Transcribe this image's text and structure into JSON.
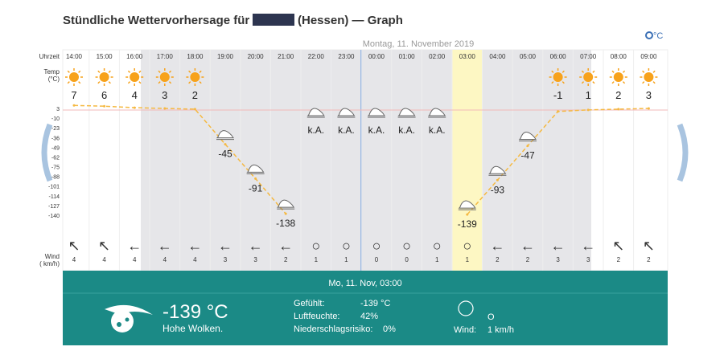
{
  "chart_data": {
    "type": "line",
    "title": "Stündliche Wettervorhersage für",
    "title_suffix": "(Hessen) — Graph",
    "date_label": "Montag, 11. November 2019",
    "unit_toggle": "°C",
    "row_labels": {
      "time": "Uhrzeit",
      "temp": "Temp",
      "temp_unit": "(°C)",
      "wind": "Wind",
      "wind_unit": "( km/h)"
    },
    "categories": [
      "14:00",
      "15:00",
      "16:00",
      "17:00",
      "18:00",
      "19:00",
      "20:00",
      "21:00",
      "22:00",
      "23:00",
      "00:00",
      "01:00",
      "02:00",
      "03:00",
      "04:00",
      "05:00",
      "06:00",
      "07:00",
      "08:00",
      "09:00"
    ],
    "series": [
      {
        "name": "Temp",
        "color": "#f5b942",
        "values": [
          7,
          6,
          4,
          3,
          2,
          -45,
          -91,
          -138,
          null,
          null,
          null,
          null,
          null,
          -139,
          -93,
          -47,
          -1,
          1,
          2,
          3
        ],
        "value_labels": [
          "7",
          "6",
          "4",
          "3",
          "2",
          "-45",
          "-91",
          "-138",
          "k.A.",
          "k.A.",
          "k.A.",
          "k.A.",
          "k.A.",
          "-139",
          "-93",
          "-47",
          "-1",
          "1",
          "2",
          "3"
        ]
      }
    ],
    "ylim": [
      3,
      -140
    ],
    "yticks": [
      3,
      -10,
      -23,
      -36,
      -49,
      -62,
      -75,
      -88,
      -101,
      -114,
      -127,
      -140
    ],
    "wind_direction": [
      "↖",
      "↖",
      "←",
      "←",
      "←",
      "←",
      "←",
      "←",
      "○",
      "○",
      "○",
      "○",
      "○",
      "○",
      "←",
      "←",
      "←",
      "←",
      "↖",
      "↖"
    ],
    "wind_speed": [
      4,
      4,
      4,
      4,
      4,
      3,
      3,
      2,
      1,
      1,
      0,
      0,
      1,
      1,
      2,
      2,
      3,
      3,
      2,
      2
    ],
    "detail": {
      "header": "Mo, 11. Nov, 03:00",
      "temp": "-139 °C",
      "condition": "Hohe Wolken.",
      "felt_label": "Gefühlt:",
      "felt": "-139 °C",
      "humidity_label": "Luftfeuchte:",
      "humidity": "42%",
      "rain_label": "Niederschlagsrisiko:",
      "rain": "0%",
      "wind_dir": "O",
      "wind_label": "Wind:",
      "wind": "1 km/h"
    }
  }
}
